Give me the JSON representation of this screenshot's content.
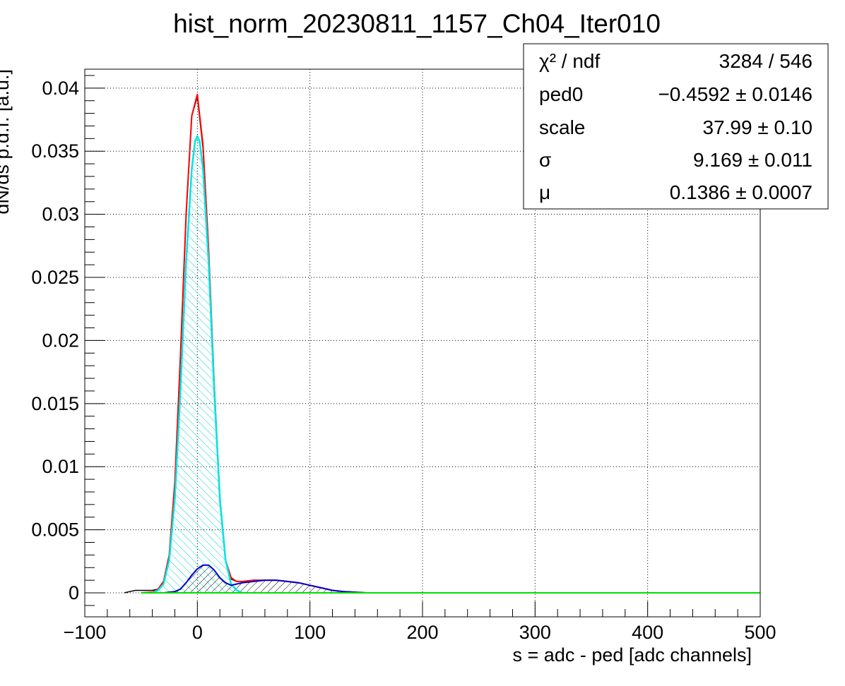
{
  "chart_data": {
    "type": "histogram",
    "title": "hist_norm_20230811_1157_Ch04_Iter010",
    "xlabel": "s = adc - ped [adc channels]",
    "ylabel": "dN/ds p.d.f. [a.u.]",
    "xlim": [
      -100,
      500
    ],
    "ylim": [
      -0.0019,
      0.0415
    ],
    "x_ticks": [
      -100,
      0,
      100,
      200,
      300,
      400,
      500
    ],
    "x_tick_labels": [
      "−100",
      "0",
      "100",
      "200",
      "300",
      "400",
      "500"
    ],
    "y_ticks": [
      0,
      0.005,
      0.01,
      0.015,
      0.02,
      0.025,
      0.03,
      0.035,
      0.04
    ],
    "y_tick_labels": [
      "0",
      "0.005",
      "0.01",
      "0.015",
      "0.02",
      "0.025",
      "0.03",
      "0.035",
      "0.04"
    ],
    "grid": true,
    "series": [
      {
        "color": "#000000",
        "x": [
          -65,
          -60,
          -55,
          -50,
          -45,
          -40,
          -35,
          -30,
          -25,
          -20,
          -15,
          -10,
          -5,
          0,
          5,
          10,
          15,
          20,
          25,
          30,
          35,
          40,
          50,
          60,
          70,
          80,
          90,
          100,
          110,
          120,
          130,
          140,
          150
        ],
        "y": [
          0,
          0.0001,
          0.0002,
          0.0002,
          0.0002,
          0.0002,
          0.0003,
          0.0008,
          0.0028,
          0.0085,
          0.0185,
          0.0298,
          0.0378,
          0.0393,
          0.0352,
          0.0268,
          0.0162,
          0.0072,
          0.0025,
          0.0011,
          0.0009,
          0.0009,
          0.001,
          0.001,
          0.001,
          0.0009,
          0.0008,
          0.0006,
          0.0004,
          0.0002,
          0.0001,
          5e-05,
          0
        ]
      },
      {
        "color": "#ff0000",
        "x": [
          -50,
          -40,
          -35,
          -30,
          -25,
          -20,
          -15,
          -10,
          -5,
          0,
          5,
          10,
          15,
          20,
          25,
          30,
          35,
          40,
          50,
          60,
          70,
          80,
          90,
          100,
          110,
          120,
          130,
          140,
          150
        ],
        "y": [
          0,
          5e-05,
          0.0003,
          0.0009,
          0.003,
          0.0088,
          0.0188,
          0.03,
          0.0378,
          0.0395,
          0.0355,
          0.0272,
          0.0165,
          0.0074,
          0.0026,
          0.0012,
          0.0009,
          0.0009,
          0.001,
          0.001,
          0.001,
          0.0009,
          0.0008,
          0.0006,
          0.0004,
          0.0002,
          0.0001,
          5e-05,
          0
        ]
      },
      {
        "color": "#00e5e5",
        "fill": "hatch",
        "x": [
          -40,
          -35,
          -30,
          -25,
          -20,
          -15,
          -10,
          -5,
          -2,
          0,
          2,
          5,
          10,
          15,
          20,
          25,
          30,
          35,
          40
        ],
        "y": [
          0,
          0.0002,
          0.0007,
          0.0026,
          0.0075,
          0.016,
          0.0262,
          0.0336,
          0.0358,
          0.0362,
          0.0358,
          0.0336,
          0.0262,
          0.016,
          0.0075,
          0.0026,
          0.0007,
          0.0002,
          0
        ]
      },
      {
        "color": "#0000cc",
        "fill": "hatch",
        "x": [
          -30,
          -20,
          -15,
          -10,
          -5,
          0,
          5,
          10,
          15,
          20,
          25,
          30,
          35,
          40,
          50,
          60,
          70,
          80,
          90,
          100,
          110,
          120,
          130,
          140,
          150
        ],
        "y": [
          0,
          0.0001,
          0.0003,
          0.0008,
          0.0014,
          0.0019,
          0.0022,
          0.0022,
          0.0018,
          0.0012,
          0.0008,
          0.0006,
          0.0007,
          0.0008,
          0.0009,
          0.001,
          0.001,
          0.0009,
          0.0008,
          0.0006,
          0.0004,
          0.0002,
          0.0001,
          5e-05,
          0
        ]
      },
      {
        "color": "#00dd00",
        "x": [
          -50,
          500
        ],
        "y": [
          0,
          0
        ]
      }
    ]
  },
  "stats": {
    "rows": [
      {
        "label": "χ² / ndf",
        "value": "3284 / 546"
      },
      {
        "label": "ped0",
        "value": "−0.4592 ± 0.0146"
      },
      {
        "label": "scale",
        "value": "37.99 ± 0.10"
      },
      {
        "label": "σ",
        "value": "9.169 ± 0.011"
      },
      {
        "label": "μ",
        "value": "0.1386 ± 0.0007"
      }
    ]
  }
}
